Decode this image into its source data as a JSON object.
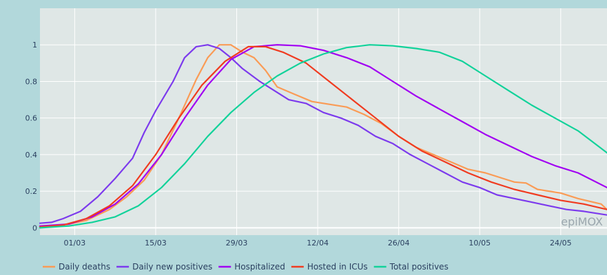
{
  "watermark": "epiMOX",
  "colors": {
    "paper": "#b2d8db",
    "plot": "#dfe7e6",
    "grid": "#ffffff"
  },
  "chart_data": {
    "type": "line",
    "title": "",
    "xlabel": "",
    "ylabel": "",
    "grid": true,
    "legend_position": "bottom",
    "xlim": [
      "2020-02-24",
      "2020-06-01"
    ],
    "ylim": [
      -0.04,
      1.2
    ],
    "x_ticks": [
      {
        "date": "2020-03-01",
        "label": "01/03"
      },
      {
        "date": "2020-03-15",
        "label": "15/03"
      },
      {
        "date": "2020-03-29",
        "label": "29/03"
      },
      {
        "date": "2020-04-12",
        "label": "12/04"
      },
      {
        "date": "2020-04-26",
        "label": "26/04"
      },
      {
        "date": "2020-05-10",
        "label": "10/05"
      },
      {
        "date": "2020-05-24",
        "label": "24/05"
      }
    ],
    "y_ticks": [
      0,
      0.2,
      0.4,
      0.6,
      0.8,
      1
    ],
    "y_tick_labels": [
      "0",
      "0.2",
      "0.4",
      "0.6",
      "0.8",
      "1"
    ],
    "series": [
      {
        "name": "Daily deaths",
        "color": "#fa9b55",
        "points": [
          [
            "2020-02-24",
            0.005
          ],
          [
            "2020-02-29",
            0.02
          ],
          [
            "2020-03-03",
            0.04
          ],
          [
            "2020-03-07",
            0.1
          ],
          [
            "2020-03-10",
            0.17
          ],
          [
            "2020-03-13",
            0.26
          ],
          [
            "2020-03-16",
            0.4
          ],
          [
            "2020-03-19",
            0.6
          ],
          [
            "2020-03-22",
            0.81
          ],
          [
            "2020-03-24",
            0.93
          ],
          [
            "2020-03-26",
            1.0
          ],
          [
            "2020-03-28",
            1.0
          ],
          [
            "2020-03-30",
            0.96
          ],
          [
            "2020-04-01",
            0.93
          ],
          [
            "2020-04-03",
            0.86
          ],
          [
            "2020-04-05",
            0.77
          ],
          [
            "2020-04-08",
            0.73
          ],
          [
            "2020-04-11",
            0.69
          ],
          [
            "2020-04-14",
            0.675
          ],
          [
            "2020-04-17",
            0.66
          ],
          [
            "2020-04-20",
            0.62
          ],
          [
            "2020-04-23",
            0.57
          ],
          [
            "2020-04-26",
            0.5
          ],
          [
            "2020-04-29",
            0.44
          ],
          [
            "2020-05-02",
            0.4
          ],
          [
            "2020-05-05",
            0.36
          ],
          [
            "2020-05-08",
            0.32
          ],
          [
            "2020-05-11",
            0.3
          ],
          [
            "2020-05-14",
            0.27
          ],
          [
            "2020-05-16",
            0.25
          ],
          [
            "2020-05-18",
            0.245
          ],
          [
            "2020-05-20",
            0.21
          ],
          [
            "2020-05-24",
            0.19
          ],
          [
            "2020-05-27",
            0.16
          ],
          [
            "2020-05-31",
            0.13
          ],
          [
            "2020-06-01",
            0.1
          ]
        ]
      },
      {
        "name": "Daily new positives",
        "color": "#7c3aed",
        "points": [
          [
            "2020-02-24",
            0.025
          ],
          [
            "2020-02-26",
            0.03
          ],
          [
            "2020-02-28",
            0.05
          ],
          [
            "2020-03-02",
            0.09
          ],
          [
            "2020-03-05",
            0.17
          ],
          [
            "2020-03-08",
            0.27
          ],
          [
            "2020-03-11",
            0.38
          ],
          [
            "2020-03-13",
            0.52
          ],
          [
            "2020-03-15",
            0.64
          ],
          [
            "2020-03-18",
            0.8
          ],
          [
            "2020-03-20",
            0.93
          ],
          [
            "2020-03-22",
            0.99
          ],
          [
            "2020-03-24",
            1.0
          ],
          [
            "2020-03-26",
            0.98
          ],
          [
            "2020-03-28",
            0.93
          ],
          [
            "2020-03-30",
            0.87
          ],
          [
            "2020-04-02",
            0.8
          ],
          [
            "2020-04-05",
            0.74
          ],
          [
            "2020-04-07",
            0.7
          ],
          [
            "2020-04-10",
            0.68
          ],
          [
            "2020-04-13",
            0.63
          ],
          [
            "2020-04-16",
            0.6
          ],
          [
            "2020-04-19",
            0.56
          ],
          [
            "2020-04-22",
            0.5
          ],
          [
            "2020-04-25",
            0.46
          ],
          [
            "2020-04-28",
            0.4
          ],
          [
            "2020-05-01",
            0.35
          ],
          [
            "2020-05-04",
            0.3
          ],
          [
            "2020-05-07",
            0.25
          ],
          [
            "2020-05-10",
            0.22
          ],
          [
            "2020-05-13",
            0.18
          ],
          [
            "2020-05-16",
            0.16
          ],
          [
            "2020-05-19",
            0.14
          ],
          [
            "2020-05-22",
            0.12
          ],
          [
            "2020-05-25",
            0.1
          ],
          [
            "2020-05-28",
            0.09
          ],
          [
            "2020-06-01",
            0.07
          ]
        ]
      },
      {
        "name": "Hospitalized",
        "color": "#a100f2",
        "points": [
          [
            "2020-02-24",
            0.01
          ],
          [
            "2020-02-29",
            0.02
          ],
          [
            "2020-03-04",
            0.06
          ],
          [
            "2020-03-08",
            0.13
          ],
          [
            "2020-03-12",
            0.24
          ],
          [
            "2020-03-16",
            0.4
          ],
          [
            "2020-03-20",
            0.6
          ],
          [
            "2020-03-24",
            0.78
          ],
          [
            "2020-03-28",
            0.92
          ],
          [
            "2020-04-01",
            0.99
          ],
          [
            "2020-04-05",
            1.0
          ],
          [
            "2020-04-09",
            0.995
          ],
          [
            "2020-04-13",
            0.97
          ],
          [
            "2020-04-17",
            0.93
          ],
          [
            "2020-04-21",
            0.88
          ],
          [
            "2020-04-25",
            0.8
          ],
          [
            "2020-04-29",
            0.72
          ],
          [
            "2020-05-03",
            0.65
          ],
          [
            "2020-05-07",
            0.58
          ],
          [
            "2020-05-11",
            0.51
          ],
          [
            "2020-05-15",
            0.45
          ],
          [
            "2020-05-19",
            0.39
          ],
          [
            "2020-05-23",
            0.34
          ],
          [
            "2020-05-27",
            0.3
          ],
          [
            "2020-06-01",
            0.22
          ]
        ]
      },
      {
        "name": "Hosted in ICUs",
        "color": "#f03b20",
        "points": [
          [
            "2020-02-24",
            0.005
          ],
          [
            "2020-02-28",
            0.015
          ],
          [
            "2020-03-03",
            0.05
          ],
          [
            "2020-03-07",
            0.12
          ],
          [
            "2020-03-11",
            0.23
          ],
          [
            "2020-03-15",
            0.4
          ],
          [
            "2020-03-19",
            0.6
          ],
          [
            "2020-03-23",
            0.78
          ],
          [
            "2020-03-27",
            0.91
          ],
          [
            "2020-03-31",
            0.99
          ],
          [
            "2020-04-03",
            0.99
          ],
          [
            "2020-04-06",
            0.96
          ],
          [
            "2020-04-10",
            0.9
          ],
          [
            "2020-04-14",
            0.8
          ],
          [
            "2020-04-18",
            0.7
          ],
          [
            "2020-04-22",
            0.6
          ],
          [
            "2020-04-26",
            0.5
          ],
          [
            "2020-04-30",
            0.42
          ],
          [
            "2020-05-04",
            0.36
          ],
          [
            "2020-05-08",
            0.3
          ],
          [
            "2020-05-12",
            0.25
          ],
          [
            "2020-05-16",
            0.21
          ],
          [
            "2020-05-20",
            0.18
          ],
          [
            "2020-05-24",
            0.15
          ],
          [
            "2020-05-28",
            0.13
          ],
          [
            "2020-06-01",
            0.1
          ]
        ]
      },
      {
        "name": "Total positives",
        "color": "#12d29a",
        "points": [
          [
            "2020-02-24",
            0.0
          ],
          [
            "2020-02-29",
            0.01
          ],
          [
            "2020-03-04",
            0.03
          ],
          [
            "2020-03-08",
            0.06
          ],
          [
            "2020-03-12",
            0.12
          ],
          [
            "2020-03-16",
            0.22
          ],
          [
            "2020-03-20",
            0.35
          ],
          [
            "2020-03-24",
            0.5
          ],
          [
            "2020-03-28",
            0.63
          ],
          [
            "2020-04-01",
            0.74
          ],
          [
            "2020-04-05",
            0.83
          ],
          [
            "2020-04-09",
            0.9
          ],
          [
            "2020-04-13",
            0.95
          ],
          [
            "2020-04-17",
            0.985
          ],
          [
            "2020-04-21",
            1.0
          ],
          [
            "2020-04-25",
            0.995
          ],
          [
            "2020-04-29",
            0.98
          ],
          [
            "2020-05-03",
            0.96
          ],
          [
            "2020-05-07",
            0.91
          ],
          [
            "2020-05-11",
            0.83
          ],
          [
            "2020-05-15",
            0.75
          ],
          [
            "2020-05-19",
            0.67
          ],
          [
            "2020-05-23",
            0.6
          ],
          [
            "2020-05-27",
            0.53
          ],
          [
            "2020-06-01",
            0.41
          ]
        ]
      }
    ]
  }
}
